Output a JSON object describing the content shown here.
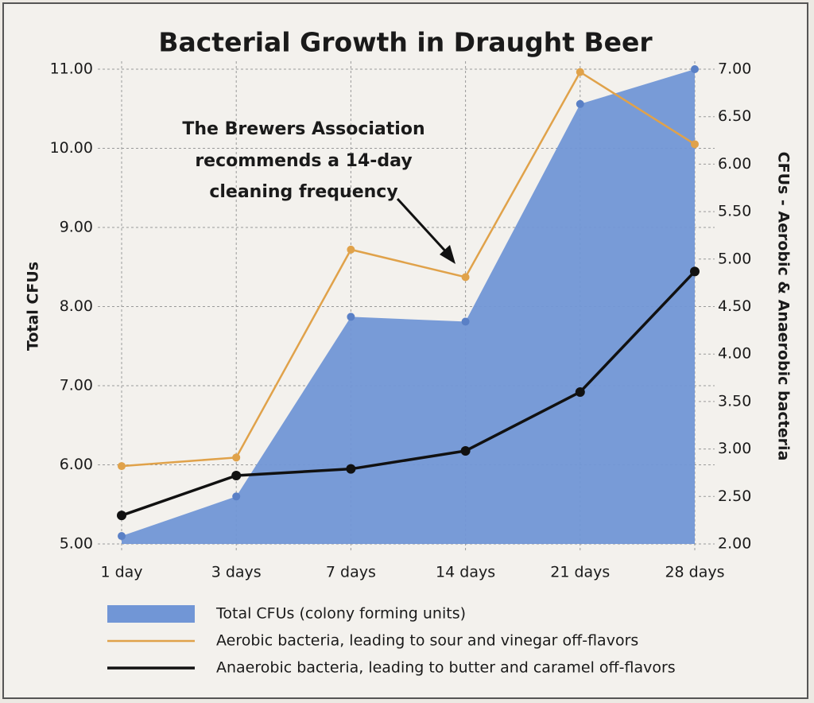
{
  "chart_data": {
    "type": "line",
    "title": "Bacterial Growth in Draught Beer",
    "y_label": "Total CFUs",
    "y2_label": "CFUs - Aerobic & Anaerobic bacteria",
    "annotation": [
      "The Brewers Association",
      "recommends a 14-day",
      "cleaning frequency"
    ],
    "categories": [
      "1 day",
      "3 days",
      "7 days",
      "14 days",
      "21 days",
      "28 days"
    ],
    "series": [
      {
        "name": "Total CFUs (colony forming units)",
        "type": "area",
        "color": "#7196d6",
        "values": [
          5.1,
          5.6,
          7.87,
          7.81,
          10.56,
          11.0
        ]
      },
      {
        "name": "Aerobic bacteria, leading to sour and vinegar off-flavors",
        "type": "line",
        "axis": "y2",
        "color": "#e0a24a",
        "values": [
          2.82,
          2.91,
          5.1,
          4.81,
          6.97,
          6.21
        ]
      },
      {
        "name": "Anaerobic bacteria, leading to butter and caramel off-flavors",
        "type": "line",
        "axis": "y2",
        "color": "#111111",
        "values": [
          2.3,
          2.72,
          2.79,
          2.98,
          3.6,
          4.87
        ]
      }
    ],
    "ylim": [
      5,
      11
    ],
    "yticks": [
      {
        "value": 5,
        "label": "5.00"
      },
      {
        "value": 6,
        "label": "6.00"
      },
      {
        "value": 7,
        "label": "7.00"
      },
      {
        "value": 8,
        "label": "8.00"
      },
      {
        "value": 9,
        "label": "9.00"
      },
      {
        "value": 10,
        "label": "10.00"
      },
      {
        "value": 11,
        "label": "11.00"
      }
    ],
    "y2lim": [
      2,
      7
    ],
    "y2ticks": [
      {
        "value": 2,
        "label": "2.00"
      },
      {
        "value": 2.5,
        "label": "2.50"
      },
      {
        "value": 3,
        "label": "3.00"
      },
      {
        "value": 3.5,
        "label": "3.50"
      },
      {
        "value": 4,
        "label": "4.00"
      },
      {
        "value": 4.5,
        "label": "4.50"
      },
      {
        "value": 5,
        "label": "5.00"
      },
      {
        "value": 5.5,
        "label": "5.50"
      },
      {
        "value": 6,
        "label": "6.00"
      },
      {
        "value": 6.5,
        "label": "6.50"
      },
      {
        "value": 7,
        "label": "7.00"
      }
    ],
    "grid": true
  }
}
